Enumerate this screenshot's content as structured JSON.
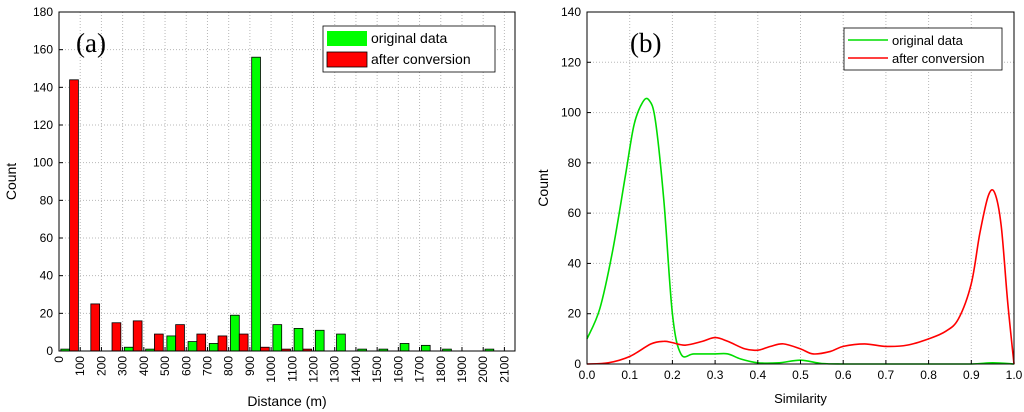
{
  "chart_data": [
    {
      "type": "bar",
      "panel_label": "(a)",
      "xlabel": "Distance (m)",
      "ylabel": "Count",
      "xlim": [
        0,
        2150
      ],
      "ylim": [
        0,
        180
      ],
      "yticks": [
        0,
        20,
        40,
        60,
        80,
        100,
        120,
        140,
        160,
        180
      ],
      "xticks": [
        "0",
        "100",
        "200",
        "300",
        "400",
        "500",
        "600",
        "700",
        "800",
        "900",
        "1000",
        "1100",
        "1200",
        "1300",
        "1400",
        "1500",
        "1600",
        "1700",
        "1800",
        "1900",
        "2000",
        "2100"
      ],
      "grid": true,
      "legend_position": "top-right",
      "categories": [
        50,
        150,
        250,
        350,
        450,
        550,
        650,
        750,
        850,
        950,
        1050,
        1150,
        1250,
        1350,
        1450,
        1550,
        1650,
        1750,
        1850,
        1950,
        2050
      ],
      "series": [
        {
          "name": "original data",
          "color": "#00ff00",
          "values": [
            1,
            0,
            0,
            2,
            1,
            8,
            5,
            4,
            19,
            156,
            14,
            12,
            11,
            9,
            1,
            1,
            4,
            3,
            1,
            0,
            1
          ]
        },
        {
          "name": "after conversion",
          "color": "#ff0000",
          "values": [
            144,
            25,
            15,
            16,
            9,
            14,
            9,
            8,
            9,
            2,
            1,
            1,
            0,
            0,
            0,
            0,
            0,
            0,
            0,
            0,
            0
          ]
        }
      ]
    },
    {
      "type": "line",
      "panel_label": "(b)",
      "xlabel": "Similarity",
      "ylabel": "Count",
      "xlim": [
        0,
        1
      ],
      "ylim": [
        0,
        140
      ],
      "yticks": [
        0,
        20,
        40,
        60,
        80,
        100,
        120,
        140
      ],
      "xticks": [
        "0.0",
        "0.1",
        "0.2",
        "0.3",
        "0.4",
        "0.5",
        "0.6",
        "0.7",
        "0.8",
        "0.9",
        "1.0"
      ],
      "grid": true,
      "legend_position": "top-right",
      "series": [
        {
          "name": "original data",
          "color": "#00dd00",
          "x": [
            0,
            0.03,
            0.06,
            0.09,
            0.11,
            0.13,
            0.145,
            0.16,
            0.18,
            0.2,
            0.22,
            0.25,
            0.3,
            0.33,
            0.36,
            0.4,
            0.45,
            0.5,
            0.55,
            0.6,
            0.7,
            0.8,
            0.9,
            0.95,
            1.0
          ],
          "y": [
            10,
            22,
            45,
            75,
            95,
            104,
            105,
            97,
            65,
            20,
            4,
            4,
            4,
            4,
            2,
            0.5,
            0.5,
            1.5,
            0.2,
            0,
            0,
            0,
            0,
            0.5,
            0
          ]
        },
        {
          "name": "after conversion",
          "color": "#ff0000",
          "x": [
            0,
            0.05,
            0.1,
            0.15,
            0.18,
            0.2,
            0.23,
            0.27,
            0.3,
            0.33,
            0.37,
            0.4,
            0.43,
            0.46,
            0.5,
            0.53,
            0.57,
            0.6,
            0.65,
            0.7,
            0.75,
            0.8,
            0.84,
            0.87,
            0.9,
            0.92,
            0.94,
            0.955,
            0.97,
            0.985,
            1.0
          ],
          "y": [
            0,
            0.5,
            3,
            8,
            9,
            8.5,
            7.5,
            9,
            10.5,
            9,
            6,
            5.5,
            7,
            8,
            6,
            4,
            5,
            7,
            8,
            7,
            7.5,
            10,
            13,
            18,
            32,
            52,
            67,
            68,
            55,
            25,
            0
          ]
        }
      ]
    }
  ]
}
